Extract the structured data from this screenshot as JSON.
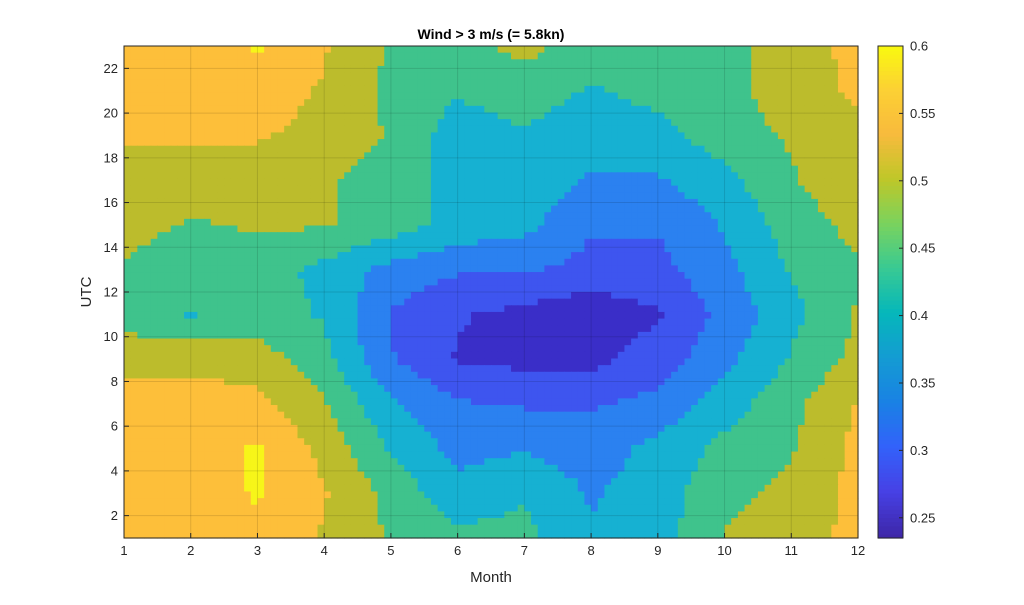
{
  "chart_data": {
    "type": "heatmap",
    "subtype": "filled-contour",
    "title": "Wind > 3 m/s (= 5.8kn)",
    "xlabel": "Month",
    "ylabel": "UTC",
    "xlim": [
      1,
      12
    ],
    "ylim": [
      1,
      23
    ],
    "x_ticks": [
      "1",
      "2",
      "3",
      "4",
      "5",
      "6",
      "7",
      "8",
      "9",
      "10",
      "11",
      "12"
    ],
    "y_ticks": [
      "2",
      "4",
      "6",
      "8",
      "10",
      "12",
      "14",
      "16",
      "18",
      "20",
      "22"
    ],
    "grid": true,
    "colormap": "parula",
    "colorbar": {
      "location": "right",
      "range": [
        0.235,
        0.6
      ],
      "ticks": [
        "0.25",
        "0.3",
        "0.35",
        "0.4",
        "0.45",
        "0.5",
        "0.55",
        "0.6"
      ]
    },
    "levels": [
      {
        "min": 0.525,
        "color": "#fdbf3a"
      },
      {
        "min": 0.475,
        "color": "#bcbc2c"
      },
      {
        "min": 0.425,
        "color": "#3fc38c"
      },
      {
        "min": 0.375,
        "color": "#16b1d2"
      },
      {
        "min": 0.325,
        "color": "#2b81f0"
      },
      {
        "min": 0.275,
        "color": "#3e55ef"
      },
      {
        "min": 0.0,
        "color": "#3a2ec8"
      },
      {
        "min": 0.575,
        "color": "#f7f519"
      }
    ],
    "z_hours": [
      1,
      3,
      5,
      7,
      9,
      11,
      13,
      15,
      17,
      19,
      21,
      23
    ],
    "z_months": [
      1,
      2,
      3,
      4,
      5,
      6,
      7,
      8,
      9,
      10,
      11,
      12
    ],
    "z": [
      [
        0.54,
        0.55,
        0.56,
        0.52,
        0.47,
        0.44,
        0.44,
        0.38,
        0.4,
        0.48,
        0.5,
        0.54
      ],
      [
        0.55,
        0.55,
        0.58,
        0.53,
        0.46,
        0.39,
        0.42,
        0.37,
        0.4,
        0.46,
        0.49,
        0.54
      ],
      [
        0.54,
        0.56,
        0.58,
        0.51,
        0.42,
        0.36,
        0.37,
        0.35,
        0.39,
        0.44,
        0.47,
        0.54
      ],
      [
        0.56,
        0.55,
        0.54,
        0.48,
        0.38,
        0.33,
        0.32,
        0.32,
        0.34,
        0.4,
        0.46,
        0.53
      ],
      [
        0.5,
        0.51,
        0.5,
        0.44,
        0.33,
        0.27,
        0.26,
        0.26,
        0.3,
        0.36,
        0.43,
        0.49
      ],
      [
        0.46,
        0.42,
        0.45,
        0.42,
        0.32,
        0.28,
        0.26,
        0.24,
        0.27,
        0.34,
        0.41,
        0.48
      ],
      [
        0.47,
        0.45,
        0.45,
        0.41,
        0.36,
        0.33,
        0.33,
        0.31,
        0.31,
        0.36,
        0.43,
        0.47
      ],
      [
        0.49,
        0.47,
        0.48,
        0.48,
        0.45,
        0.41,
        0.39,
        0.33,
        0.33,
        0.38,
        0.45,
        0.49
      ],
      [
        0.51,
        0.51,
        0.5,
        0.48,
        0.45,
        0.41,
        0.41,
        0.37,
        0.37,
        0.41,
        0.47,
        0.51
      ],
      [
        0.53,
        0.53,
        0.53,
        0.51,
        0.47,
        0.4,
        0.42,
        0.39,
        0.41,
        0.45,
        0.48,
        0.52
      ],
      [
        0.54,
        0.54,
        0.55,
        0.52,
        0.46,
        0.43,
        0.45,
        0.42,
        0.44,
        0.45,
        0.51,
        0.53
      ],
      [
        0.55,
        0.55,
        0.58,
        0.53,
        0.47,
        0.46,
        0.49,
        0.45,
        0.45,
        0.46,
        0.5,
        0.54
      ]
    ]
  }
}
